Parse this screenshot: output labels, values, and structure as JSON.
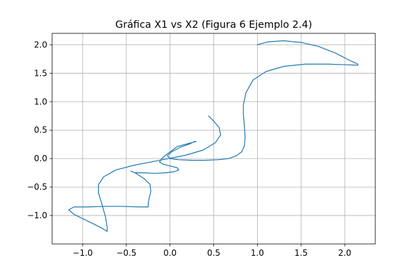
{
  "chart_data": {
    "type": "line",
    "title": "Gráfica X1 vs X2 (Figura 6 Ejemplo 2.4)",
    "xlabel": "",
    "ylabel": "",
    "xlim": [
      -1.35,
      2.35
    ],
    "ylim": [
      -1.5,
      2.2
    ],
    "xticks": [
      -1.0,
      -0.5,
      0.0,
      0.5,
      1.0,
      1.5,
      2.0
    ],
    "xtick_labels": [
      "−1.0",
      "−0.5",
      "0.0",
      "0.5",
      "1.0",
      "1.5",
      "2.0"
    ],
    "yticks": [
      -1.0,
      -0.5,
      0.0,
      0.5,
      1.0,
      1.5,
      2.0
    ],
    "ytick_labels": [
      "−1.0",
      "−0.5",
      "0.0",
      "0.5",
      "1.0",
      "1.5",
      "2.0"
    ],
    "grid": true,
    "colors": {
      "series": "#1f77b4"
    },
    "series": [
      {
        "x": [
          1.0,
          1.12,
          1.3,
          1.5,
          1.7,
          1.9,
          2.05,
          2.15,
          2.15,
          2.0,
          1.8,
          1.55,
          1.3,
          1.1,
          0.95,
          0.87,
          0.84,
          0.84,
          0.85,
          0.86,
          0.85,
          0.82,
          0.76,
          0.67,
          0.55,
          0.4,
          0.25,
          0.1,
          0.0,
          -0.03,
          0.02,
          0.12,
          0.23,
          0.28,
          0.3,
          0.3,
          0.27,
          0.2,
          0.08,
          0.02,
          -0.05,
          -0.1,
          -0.12,
          -0.08,
          0.0,
          0.08,
          0.1,
          0.05,
          -0.05,
          -0.18,
          -0.3,
          -0.4,
          -0.45,
          -0.4,
          -0.3,
          -0.23,
          -0.22,
          -0.24,
          -0.25,
          -0.25,
          -0.35,
          -0.55,
          -0.75,
          -0.95,
          -1.1,
          -1.16,
          -1.1,
          -0.98,
          -0.86,
          -0.76,
          -0.72,
          -0.72,
          -0.74,
          -0.78,
          -0.82,
          -0.82,
          -0.76,
          -0.62,
          -0.42,
          -0.22,
          -0.02,
          0.18,
          0.38,
          0.52,
          0.58,
          0.56,
          0.5,
          0.44
        ],
        "y": [
          2.0,
          2.05,
          2.07,
          2.04,
          1.97,
          1.85,
          1.73,
          1.66,
          1.64,
          1.65,
          1.66,
          1.66,
          1.62,
          1.53,
          1.38,
          1.16,
          0.95,
          0.78,
          0.58,
          0.38,
          0.22,
          0.12,
          0.05,
          0.0,
          -0.02,
          -0.03,
          -0.03,
          -0.02,
          0.0,
          0.05,
          0.12,
          0.2,
          0.26,
          0.3,
          0.3,
          0.3,
          0.29,
          0.26,
          0.21,
          0.14,
          0.06,
          -0.01,
          -0.06,
          -0.1,
          -0.13,
          -0.16,
          -0.2,
          -0.23,
          -0.25,
          -0.26,
          -0.25,
          -0.25,
          -0.22,
          -0.25,
          -0.35,
          -0.45,
          -0.58,
          -0.7,
          -0.8,
          -0.85,
          -0.85,
          -0.84,
          -0.84,
          -0.85,
          -0.85,
          -0.9,
          -0.98,
          -1.07,
          -1.16,
          -1.24,
          -1.28,
          -1.2,
          -1.02,
          -0.8,
          -0.6,
          -0.46,
          -0.32,
          -0.2,
          -0.12,
          -0.06,
          0.0,
          0.06,
          0.15,
          0.28,
          0.42,
          0.55,
          0.66,
          0.75
        ]
      }
    ]
  }
}
